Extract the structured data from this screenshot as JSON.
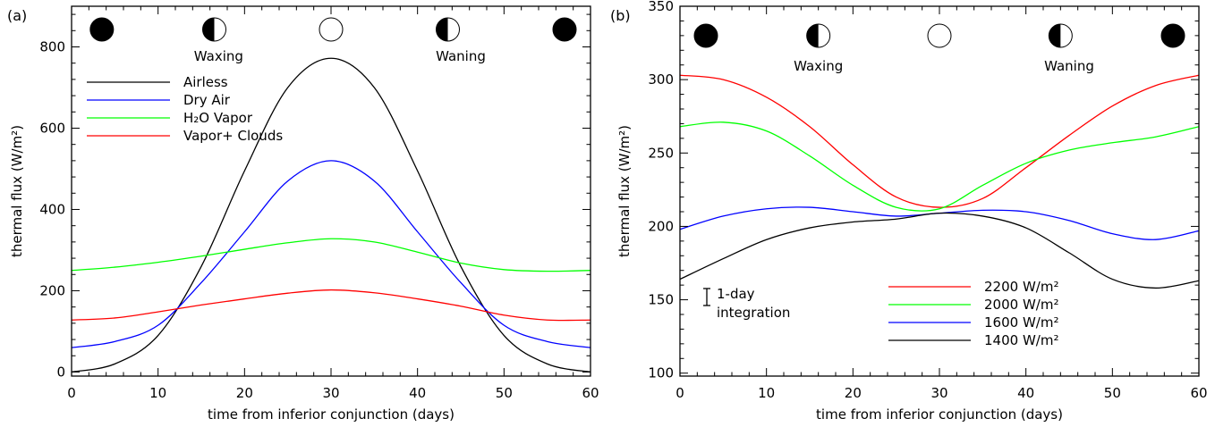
{
  "chart_data": [
    {
      "panel_label": "(a)",
      "type": "line",
      "xlabel": "time from inferior conjunction (days)",
      "ylabel": "thermal flux (W/m²)",
      "xlim": [
        0,
        60
      ],
      "ylim": [
        -10,
        900
      ],
      "xticks": [
        0,
        10,
        20,
        30,
        40,
        50,
        60
      ],
      "yticks": [
        0,
        200,
        400,
        600,
        800
      ],
      "grid": false,
      "legend_position": "upper-left",
      "phase_labels": [
        {
          "day": 17,
          "label": "Waxing"
        },
        {
          "day": 45,
          "label": "Waning"
        }
      ],
      "moon_phases": [
        {
          "day": 3.5,
          "phase": "new"
        },
        {
          "day": 16.5,
          "phase": "half"
        },
        {
          "day": 30,
          "phase": "full"
        },
        {
          "day": 43.5,
          "phase": "half"
        },
        {
          "day": 57,
          "phase": "new"
        }
      ],
      "series": [
        {
          "name": "Airless",
          "color": "#000000",
          "x": [
            0,
            5,
            10,
            15,
            20,
            25,
            30,
            35,
            40,
            45,
            50,
            55,
            60
          ],
          "y": [
            0,
            20,
            90,
            260,
            495,
            700,
            772,
            700,
            495,
            260,
            90,
            20,
            0
          ]
        },
        {
          "name": "Dry Air",
          "color": "#0000ff",
          "x": [
            0,
            5,
            10,
            15,
            20,
            25,
            30,
            35,
            40,
            45,
            50,
            55,
            60
          ],
          "y": [
            60,
            75,
            115,
            220,
            345,
            470,
            520,
            470,
            345,
            220,
            115,
            75,
            60
          ]
        },
        {
          "name": "H₂O Vapor",
          "color": "#00ff00",
          "x": [
            0,
            5,
            10,
            15,
            20,
            25,
            30,
            35,
            40,
            45,
            50,
            55,
            60
          ],
          "y": [
            250,
            258,
            270,
            285,
            302,
            318,
            328,
            320,
            295,
            268,
            252,
            248,
            250
          ]
        },
        {
          "name": "Vapor+ Clouds",
          "color": "#ff0000",
          "x": [
            0,
            5,
            10,
            15,
            20,
            25,
            30,
            35,
            40,
            45,
            50,
            55,
            60
          ],
          "y": [
            128,
            133,
            148,
            165,
            180,
            194,
            202,
            195,
            180,
            162,
            140,
            128,
            128
          ]
        }
      ]
    },
    {
      "panel_label": "(b)",
      "type": "line",
      "xlabel": "time from inferior conjunction (days)",
      "ylabel": "thermal flux (W/m²)",
      "xlim": [
        0,
        60
      ],
      "ylim": [
        98,
        350
      ],
      "xticks": [
        0,
        10,
        20,
        30,
        40,
        50,
        60
      ],
      "yticks": [
        100,
        150,
        200,
        250,
        300,
        350
      ],
      "grid": false,
      "legend_position": "lower-right",
      "annotation": "1-day integration",
      "phase_labels": [
        {
          "day": 16,
          "label": "Waxing"
        },
        {
          "day": 45,
          "label": "Waning"
        }
      ],
      "moon_phases": [
        {
          "day": 3,
          "phase": "new"
        },
        {
          "day": 16,
          "phase": "half"
        },
        {
          "day": 30,
          "phase": "full"
        },
        {
          "day": 44,
          "phase": "half"
        },
        {
          "day": 57,
          "phase": "new"
        }
      ],
      "series": [
        {
          "name": "2200 W/m²",
          "color": "#ff0000",
          "x": [
            0,
            5,
            10,
            15,
            20,
            25,
            30,
            35,
            40,
            45,
            50,
            55,
            60
          ],
          "y": [
            303,
            300,
            288,
            268,
            242,
            220,
            213,
            219,
            240,
            262,
            282,
            296,
            303
          ]
        },
        {
          "name": "2000 W/m²",
          "color": "#00ff00",
          "x": [
            0,
            5,
            10,
            15,
            20,
            25,
            30,
            35,
            40,
            45,
            50,
            55,
            60
          ],
          "y": [
            268,
            271,
            265,
            248,
            228,
            213,
            212,
            228,
            243,
            252,
            257,
            261,
            268
          ]
        },
        {
          "name": "1600 W/m²",
          "color": "#0000ff",
          "x": [
            0,
            5,
            10,
            15,
            20,
            25,
            30,
            35,
            40,
            45,
            50,
            55,
            60
          ],
          "y": [
            198,
            207,
            212,
            213,
            210,
            207,
            209,
            211,
            210,
            204,
            195,
            191,
            197
          ]
        },
        {
          "name": "1400 W/m²",
          "color": "#000000",
          "x": [
            0,
            5,
            10,
            15,
            20,
            25,
            30,
            35,
            40,
            45,
            50,
            55,
            60
          ],
          "y": [
            164,
            178,
            191,
            199,
            203,
            205,
            209,
            207,
            199,
            182,
            164,
            158,
            163
          ]
        }
      ]
    }
  ]
}
